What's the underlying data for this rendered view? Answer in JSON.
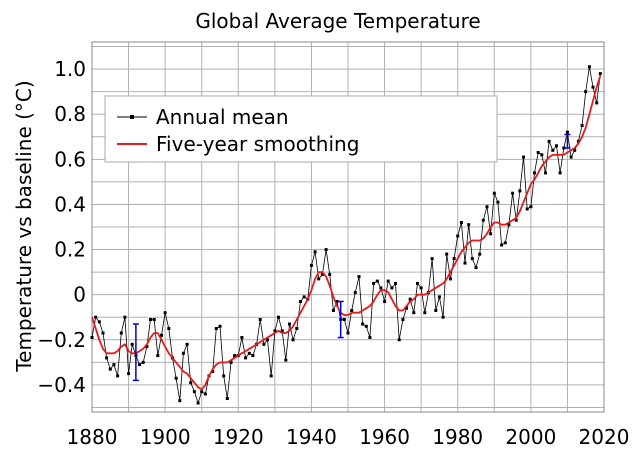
{
  "chart_data": {
    "type": "line",
    "title": "Global Average Temperature",
    "xlabel": "",
    "ylabel": "Temperature vs baseline (°C)",
    "xlim": [
      1880,
      2020
    ],
    "ylim": [
      -0.52,
      1.12
    ],
    "grid": true,
    "legend_position": "top-left",
    "x_ticks": [
      {
        "value": 1880,
        "label": "1880"
      },
      {
        "value": 1900,
        "label": "1900"
      },
      {
        "value": 1920,
        "label": "1920"
      },
      {
        "value": 1940,
        "label": "1940"
      },
      {
        "value": 1960,
        "label": "1960"
      },
      {
        "value": 1980,
        "label": "1980"
      },
      {
        "value": 2000,
        "label": "2000"
      },
      {
        "value": 2020,
        "label": "2020"
      }
    ],
    "y_ticks": [
      {
        "value": 1.0,
        "label": "1.0"
      },
      {
        "value": 0.8,
        "label": "0.8"
      },
      {
        "value": 0.6,
        "label": "0.6"
      },
      {
        "value": 0.4,
        "label": "0.4"
      },
      {
        "value": 0.2,
        "label": "0.2"
      },
      {
        "value": 0.0,
        "label": "0"
      },
      {
        "value": -0.2,
        "label": "−0.2"
      },
      {
        "value": -0.4,
        "label": "−0.4"
      }
    ],
    "series": [
      {
        "name": "Annual mean",
        "color": "#000000",
        "marker": "square",
        "x": [
          1880,
          1881,
          1882,
          1883,
          1884,
          1885,
          1886,
          1887,
          1888,
          1889,
          1890,
          1891,
          1892,
          1893,
          1894,
          1895,
          1896,
          1897,
          1898,
          1899,
          1900,
          1901,
          1902,
          1903,
          1904,
          1905,
          1906,
          1907,
          1908,
          1909,
          1910,
          1911,
          1912,
          1913,
          1914,
          1915,
          1916,
          1917,
          1918,
          1919,
          1920,
          1921,
          1922,
          1923,
          1924,
          1925,
          1926,
          1927,
          1928,
          1929,
          1930,
          1931,
          1932,
          1933,
          1934,
          1935,
          1936,
          1937,
          1938,
          1939,
          1940,
          1941,
          1942,
          1943,
          1944,
          1945,
          1946,
          1947,
          1948,
          1949,
          1950,
          1951,
          1952,
          1953,
          1954,
          1955,
          1956,
          1957,
          1958,
          1959,
          1960,
          1961,
          1962,
          1963,
          1964,
          1965,
          1966,
          1967,
          1968,
          1969,
          1970,
          1971,
          1972,
          1973,
          1974,
          1975,
          1976,
          1977,
          1978,
          1979,
          1980,
          1981,
          1982,
          1983,
          1984,
          1985,
          1986,
          1987,
          1988,
          1989,
          1990,
          1991,
          1992,
          1993,
          1994,
          1995,
          1996,
          1997,
          1998,
          1999,
          2000,
          2001,
          2002,
          2003,
          2004,
          2005,
          2006,
          2007,
          2008,
          2009,
          2010,
          2011,
          2012,
          2013,
          2014,
          2015,
          2016,
          2017,
          2018,
          2019
        ],
        "values": [
          -0.19,
          -0.1,
          -0.12,
          -0.17,
          -0.28,
          -0.33,
          -0.31,
          -0.36,
          -0.17,
          -0.1,
          -0.35,
          -0.22,
          -0.27,
          -0.31,
          -0.3,
          -0.23,
          -0.11,
          -0.11,
          -0.27,
          -0.18,
          -0.08,
          -0.15,
          -0.28,
          -0.37,
          -0.47,
          -0.26,
          -0.22,
          -0.39,
          -0.43,
          -0.48,
          -0.43,
          -0.44,
          -0.36,
          -0.34,
          -0.15,
          -0.14,
          -0.36,
          -0.46,
          -0.3,
          -0.27,
          -0.27,
          -0.19,
          -0.28,
          -0.26,
          -0.27,
          -0.22,
          -0.11,
          -0.22,
          -0.2,
          -0.36,
          -0.16,
          -0.1,
          -0.16,
          -0.29,
          -0.13,
          -0.2,
          -0.15,
          -0.03,
          -0.01,
          -0.02,
          0.13,
          0.19,
          0.07,
          0.09,
          0.2,
          0.09,
          -0.07,
          -0.03,
          -0.11,
          -0.11,
          -0.17,
          -0.07,
          0.01,
          0.08,
          -0.13,
          -0.14,
          -0.19,
          0.05,
          0.06,
          0.03,
          -0.03,
          0.06,
          0.03,
          0.05,
          -0.2,
          -0.11,
          -0.06,
          -0.02,
          -0.08,
          0.05,
          0.03,
          -0.08,
          0.01,
          0.16,
          -0.07,
          -0.01,
          -0.1,
          0.18,
          0.07,
          0.16,
          0.26,
          0.32,
          0.14,
          0.31,
          0.16,
          0.12,
          0.18,
          0.33,
          0.39,
          0.27,
          0.45,
          0.41,
          0.22,
          0.23,
          0.31,
          0.45,
          0.33,
          0.46,
          0.61,
          0.38,
          0.39,
          0.54,
          0.63,
          0.62,
          0.54,
          0.68,
          0.64,
          0.66,
          0.54,
          0.65,
          0.72,
          0.61,
          0.64,
          0.68,
          0.75,
          0.9,
          1.01,
          0.92,
          0.85,
          0.98
        ]
      },
      {
        "name": "Five-year smoothing",
        "color": "#e41a1c",
        "x": [
          1880,
          1881,
          1882,
          1883,
          1884,
          1885,
          1886,
          1887,
          1888,
          1889,
          1890,
          1891,
          1892,
          1893,
          1894,
          1895,
          1896,
          1897,
          1898,
          1899,
          1900,
          1901,
          1902,
          1903,
          1904,
          1905,
          1906,
          1907,
          1908,
          1909,
          1910,
          1911,
          1912,
          1913,
          1914,
          1915,
          1916,
          1917,
          1918,
          1919,
          1920,
          1921,
          1922,
          1923,
          1924,
          1925,
          1926,
          1927,
          1928,
          1929,
          1930,
          1931,
          1932,
          1933,
          1934,
          1935,
          1936,
          1937,
          1938,
          1939,
          1940,
          1941,
          1942,
          1943,
          1944,
          1945,
          1946,
          1947,
          1948,
          1949,
          1950,
          1951,
          1952,
          1953,
          1954,
          1955,
          1956,
          1957,
          1958,
          1959,
          1960,
          1961,
          1962,
          1963,
          1964,
          1965,
          1966,
          1967,
          1968,
          1969,
          1970,
          1971,
          1972,
          1973,
          1974,
          1975,
          1976,
          1977,
          1978,
          1979,
          1980,
          1981,
          1982,
          1983,
          1984,
          1985,
          1986,
          1987,
          1988,
          1989,
          1990,
          1991,
          1992,
          1993,
          1994,
          1995,
          1996,
          1997,
          1998,
          1999,
          2000,
          2001,
          2002,
          2003,
          2004,
          2005,
          2006,
          2007,
          2008,
          2009,
          2010,
          2011,
          2012,
          2013,
          2014,
          2015,
          2016,
          2017,
          2018,
          2019
        ],
        "values": [
          -0.1,
          -0.15,
          -0.2,
          -0.24,
          -0.26,
          -0.26,
          -0.26,
          -0.25,
          -0.23,
          -0.22,
          -0.25,
          -0.26,
          -0.26,
          -0.25,
          -0.24,
          -0.22,
          -0.19,
          -0.17,
          -0.17,
          -0.2,
          -0.23,
          -0.26,
          -0.28,
          -0.3,
          -0.32,
          -0.34,
          -0.35,
          -0.37,
          -0.39,
          -0.41,
          -0.42,
          -0.4,
          -0.36,
          -0.33,
          -0.31,
          -0.3,
          -0.3,
          -0.3,
          -0.29,
          -0.28,
          -0.27,
          -0.26,
          -0.25,
          -0.24,
          -0.23,
          -0.22,
          -0.21,
          -0.2,
          -0.19,
          -0.18,
          -0.17,
          -0.16,
          -0.17,
          -0.17,
          -0.16,
          -0.14,
          -0.11,
          -0.08,
          -0.05,
          -0.02,
          0.02,
          0.07,
          0.1,
          0.1,
          0.08,
          0.04,
          -0.01,
          -0.05,
          -0.08,
          -0.09,
          -0.09,
          -0.08,
          -0.08,
          -0.08,
          -0.07,
          -0.06,
          -0.05,
          -0.03,
          0.0,
          0.02,
          0.02,
          0.01,
          -0.02,
          -0.05,
          -0.07,
          -0.07,
          -0.05,
          -0.03,
          -0.02,
          0.0,
          0.0,
          0.0,
          0.01,
          0.02,
          0.03,
          0.04,
          0.05,
          0.07,
          0.1,
          0.13,
          0.16,
          0.19,
          0.21,
          0.23,
          0.24,
          0.24,
          0.24,
          0.25,
          0.27,
          0.3,
          0.32,
          0.32,
          0.31,
          0.31,
          0.32,
          0.33,
          0.34,
          0.37,
          0.41,
          0.45,
          0.49,
          0.51,
          0.54,
          0.57,
          0.59,
          0.61,
          0.62,
          0.62,
          0.62,
          0.62,
          0.63,
          0.64,
          0.65,
          0.67,
          0.7,
          0.74,
          0.8,
          0.86,
          0.92,
          0.97
        ]
      }
    ],
    "error_bars": [
      {
        "x": 1892,
        "y": -0.25,
        "low": -0.38,
        "high": -0.13,
        "color": "#0000cc"
      },
      {
        "x": 1948,
        "y": -0.11,
        "low": -0.19,
        "high": -0.03,
        "color": "#0000cc"
      },
      {
        "x": 2010,
        "y": 0.68,
        "low": 0.65,
        "high": 0.71,
        "color": "#0000cc"
      }
    ]
  }
}
